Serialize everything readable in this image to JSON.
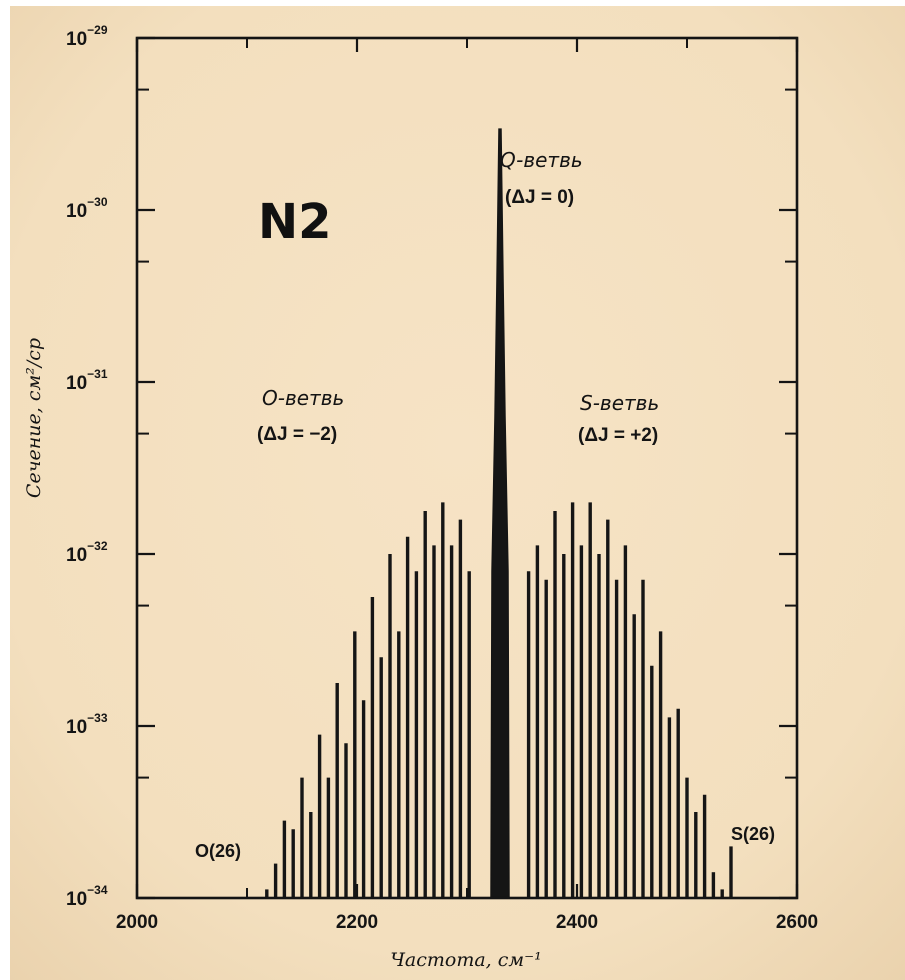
{
  "chart_data": {
    "type": "bar",
    "molecule": "N2",
    "ylabel": "Сечение, см²/ср",
    "xlabel": "Частота, см⁻¹",
    "x_axis": {
      "range": [
        2000,
        2600
      ],
      "ticks": [
        "2000",
        "2200",
        "2400",
        "2600"
      ]
    },
    "y_axis": {
      "scale": "log",
      "range": [
        1e-34,
        1e-29
      ],
      "ticks": [
        {
          "value": 1e-34,
          "base": "10",
          "exp": "−34"
        },
        {
          "value": 1e-33,
          "base": "10",
          "exp": "−33"
        },
        {
          "value": 1e-32,
          "base": "10",
          "exp": "−32"
        },
        {
          "value": 1e-31,
          "base": "10",
          "exp": "−31"
        },
        {
          "value": 1e-30,
          "base": "10",
          "exp": "−30"
        },
        {
          "value": 1e-29,
          "base": "10",
          "exp": "−29"
        }
      ]
    },
    "annotations": {
      "q_branch": {
        "name": "Q-ветвь",
        "rule": "(ΔJ = 0)"
      },
      "o_branch": {
        "name": "O-ветвь",
        "rule": "(ΔJ = −2)"
      },
      "s_branch": {
        "name": "S-ветвь",
        "rule": "(ΔJ = +2)"
      },
      "o_end": "O(26)",
      "s_end": "S(26)"
    },
    "q_branch": {
      "x": 2330,
      "peak_log10": -29.53
    },
    "o_branch": {
      "x": [
        2118,
        2126,
        2134,
        2142,
        2150,
        2158,
        2166,
        2174,
        2182,
        2190,
        2198,
        2206,
        2214,
        2222,
        2230,
        2238,
        2246,
        2254,
        2262,
        2270,
        2278,
        2286,
        2294,
        2302
      ],
      "log10_values": [
        -33.95,
        -33.8,
        -33.55,
        -33.6,
        -33.3,
        -33.5,
        -33.05,
        -33.3,
        -32.75,
        -33.1,
        -32.45,
        -32.85,
        -32.25,
        -32.6,
        -32.0,
        -32.45,
        -31.9,
        -32.1,
        -31.75,
        -31.95,
        -31.7,
        -31.95,
        -31.8,
        -32.1
      ]
    },
    "s_branch": {
      "x": [
        2356,
        2364,
        2372,
        2380,
        2388,
        2396,
        2404,
        2412,
        2420,
        2428,
        2436,
        2444,
        2452,
        2460,
        2468,
        2476,
        2484,
        2492,
        2500,
        2508,
        2516,
        2524,
        2532,
        2540
      ],
      "log10_values": [
        -32.1,
        -31.95,
        -32.15,
        -31.75,
        -32.0,
        -31.7,
        -31.95,
        -31.7,
        -32.0,
        -31.8,
        -32.15,
        -31.95,
        -32.35,
        -32.15,
        -32.65,
        -32.45,
        -32.95,
        -32.9,
        -33.3,
        -33.5,
        -33.4,
        -33.85,
        -33.95,
        -33.7
      ]
    }
  }
}
